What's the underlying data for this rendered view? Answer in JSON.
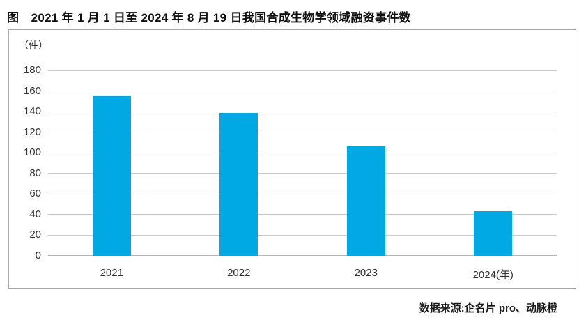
{
  "figure_title": "图　2021 年 1 月 1 日至 2024 年 8 月 19 日我国合成生物学领域融资事件数",
  "source_note": "数据来源:企名片 pro、动脉橙",
  "chart_data": {
    "type": "bar",
    "title": "2021 年 1 月 1 日至 2024 年 8 月 19 日我国合成生物学领域融资事件数",
    "unit_label": "（件）",
    "categories": [
      "2021",
      "2022",
      "2023",
      "2024(年)"
    ],
    "values": [
      155,
      139,
      106,
      43
    ],
    "yticks": [
      0,
      20,
      40,
      60,
      80,
      100,
      120,
      140,
      160,
      180
    ],
    "ylim": [
      0,
      180
    ],
    "xlabel": "",
    "ylabel": "（件）",
    "grid": true,
    "legend": false,
    "bar_color": "#00a9e4",
    "source": "数据来源:企名片 pro、动脉橙"
  }
}
